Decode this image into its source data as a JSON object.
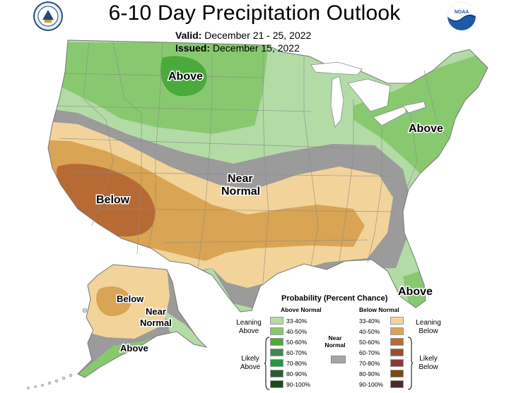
{
  "header": {
    "title": "6-10 Day Precipitation Outlook",
    "valid_label": "Valid:",
    "valid_value": "December 21 - 25, 2022",
    "issued_label": "Issued:",
    "issued_value": "December 15, 2022"
  },
  "logos": {
    "left": "department-of-commerce-seal",
    "right": "noaa-logo"
  },
  "map": {
    "labels": {
      "above_north": "Above",
      "above_northeast": "Above",
      "above_florida": "Above",
      "near_normal_central_1": "Near",
      "near_normal_central_2": "Normal",
      "below_west": "Below",
      "below_alaska": "Below",
      "near_normal_alaska_1": "Near",
      "near_normal_alaska_2": "Normal",
      "above_alaska": "Above"
    },
    "colors": {
      "above_33_40": "#b3dba6",
      "above_40_50": "#88c96f",
      "above_50_60": "#4aaa3a",
      "near_normal": "#9b9b9b",
      "below_33_40": "#f2d49a",
      "below_40_50": "#d9a453",
      "below_50_60": "#b86a34",
      "land_outline": "#8a8a8a",
      "water": "#ffffff",
      "white_land": "#ffffff"
    }
  },
  "legend": {
    "title": "Probability (Percent Chance)",
    "above_header": "Above Normal",
    "below_header": "Below Normal",
    "near_label_1": "Near",
    "near_label_2": "Normal",
    "near_color": "#a6a6a6",
    "leaning_above_1": "Leaning",
    "leaning_above_2": "Above",
    "likely_above_1": "Likely",
    "likely_above_2": "Above",
    "leaning_below_1": "Leaning",
    "leaning_below_2": "Below",
    "likely_below_1": "Likely",
    "likely_below_2": "Below",
    "above": [
      {
        "label": "33-40%",
        "color": "#b3dba6"
      },
      {
        "label": "40-50%",
        "color": "#88c96f"
      },
      {
        "label": "50-60%",
        "color": "#4aaa3a"
      },
      {
        "label": "60-70%",
        "color": "#3d8a55"
      },
      {
        "label": "70-80%",
        "color": "#1f9a3f"
      },
      {
        "label": "80-90%",
        "color": "#2d5a38"
      },
      {
        "label": "90-100%",
        "color": "#1c4a1a"
      }
    ],
    "below": [
      {
        "label": "33-40%",
        "color": "#f2d49a"
      },
      {
        "label": "40-50%",
        "color": "#d9a453"
      },
      {
        "label": "50-60%",
        "color": "#b86a34"
      },
      {
        "label": "60-70%",
        "color": "#9b4e2f"
      },
      {
        "label": "70-80%",
        "color": "#8c3a3a"
      },
      {
        "label": "80-90%",
        "color": "#7a4a12"
      },
      {
        "label": "90-100%",
        "color": "#4a2a2a"
      }
    ]
  }
}
